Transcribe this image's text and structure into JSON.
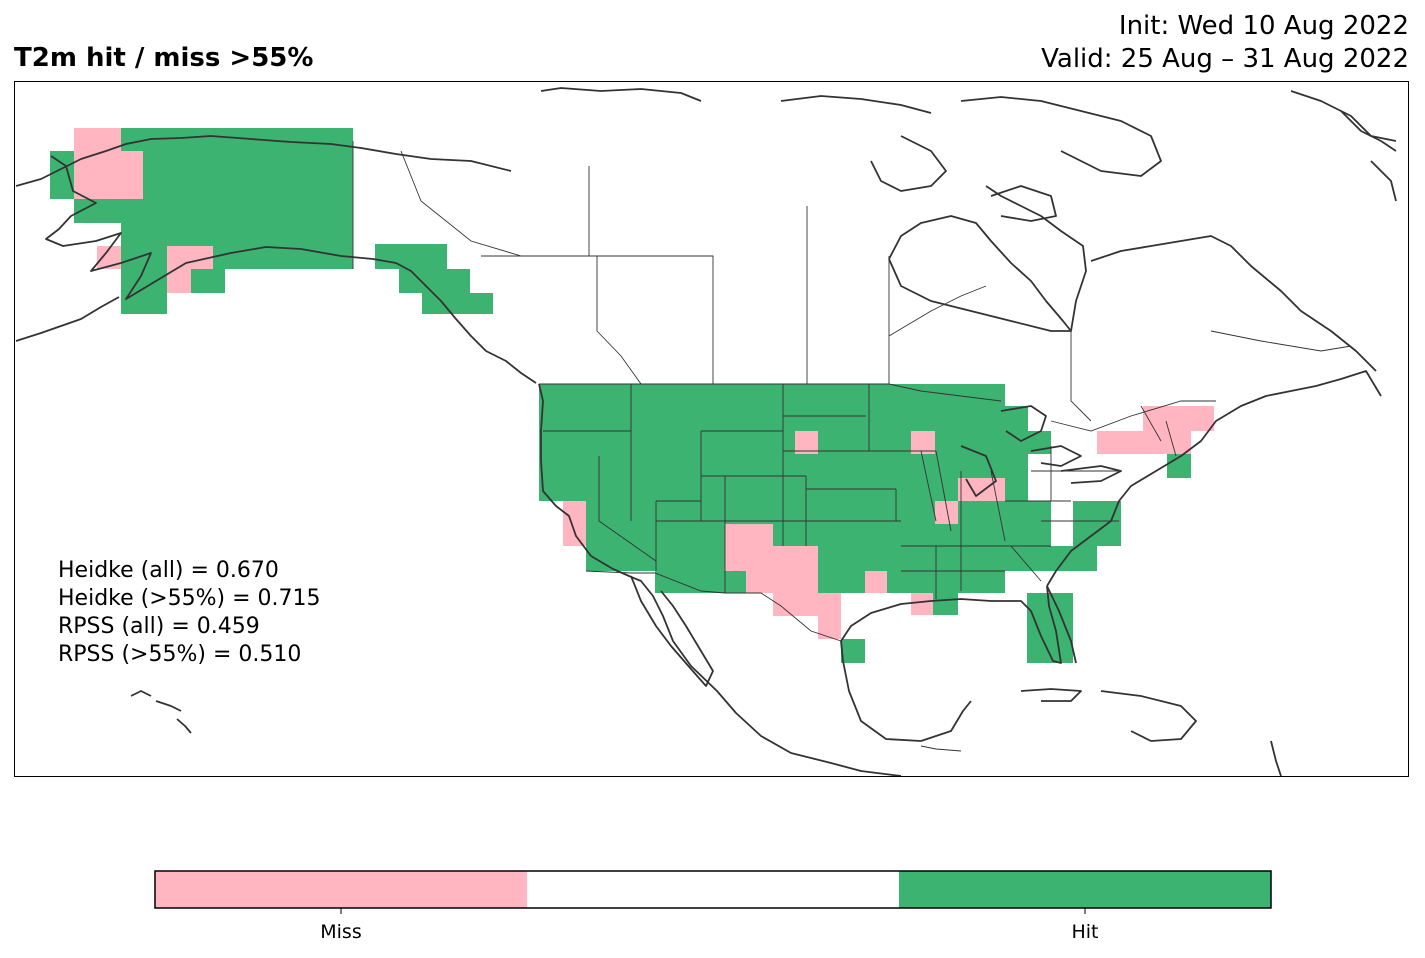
{
  "header": {
    "title": "T2m hit / miss  >55%",
    "init_line": "Init: Wed 10 Aug 2022",
    "valid_line": "Valid: 25 Aug – 31 Aug 2022"
  },
  "scores": [
    "Heidke (all) = 0.670",
    "Heidke (>55%) = 0.715",
    "RPSS (all) = 0.459",
    "RPSS (>55%) = 0.510"
  ],
  "legend": {
    "items": [
      {
        "label": "Miss",
        "color": "#ffb6c1"
      },
      {
        "label": "",
        "color": "#ffffff"
      },
      {
        "label": "Hit",
        "color": "#3cb371"
      }
    ]
  },
  "colors": {
    "hit": "#3cb371",
    "miss": "#ffb6c1",
    "coast": "#333333",
    "border": "#333333"
  }
}
